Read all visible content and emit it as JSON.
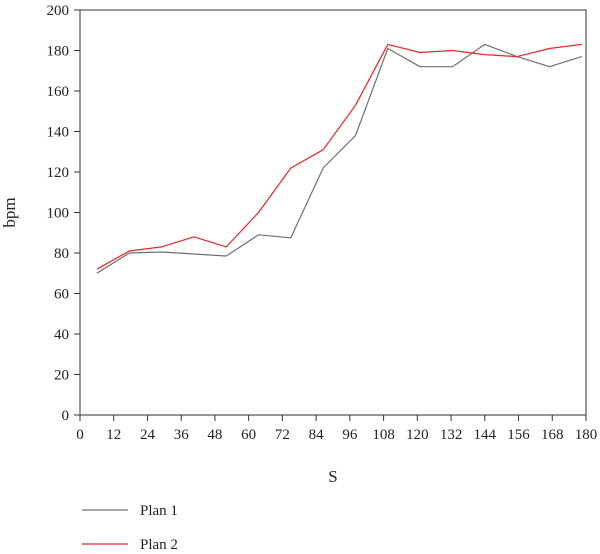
{
  "chart_data": {
    "type": "line",
    "title": "",
    "xlabel": "S",
    "ylabel": "bpm",
    "xlim": [
      0,
      180
    ],
    "ylim": [
      0,
      200
    ],
    "xticks": [
      0,
      12,
      24,
      36,
      48,
      60,
      72,
      84,
      96,
      108,
      120,
      132,
      144,
      156,
      168,
      180
    ],
    "yticks": [
      0,
      20,
      40,
      60,
      80,
      100,
      120,
      140,
      160,
      180,
      200
    ],
    "grid": false,
    "legend_position": "bottom-left",
    "series": [
      {
        "name": "Plan 1",
        "color": "#707070",
        "x": [
          6,
          17.5,
          29,
          40.5,
          52,
          63.5,
          75,
          86.5,
          98,
          109.5,
          121,
          132.5,
          144,
          155.5,
          167,
          178.5
        ],
        "y": [
          70,
          80,
          80.5,
          79.5,
          78.5,
          89,
          87.5,
          122,
          138,
          181,
          172,
          172,
          183,
          177,
          172,
          177
        ]
      },
      {
        "name": "Plan 2",
        "color": "#e8262b",
        "x": [
          6,
          17.5,
          29,
          40.5,
          52,
          63.5,
          75,
          86.5,
          98,
          109.5,
          121,
          132.5,
          144,
          155.5,
          167,
          178.5
        ],
        "y": [
          72,
          81,
          83,
          88,
          83,
          100,
          122,
          131,
          153,
          183,
          179,
          180,
          178,
          177,
          181,
          183
        ]
      }
    ]
  }
}
